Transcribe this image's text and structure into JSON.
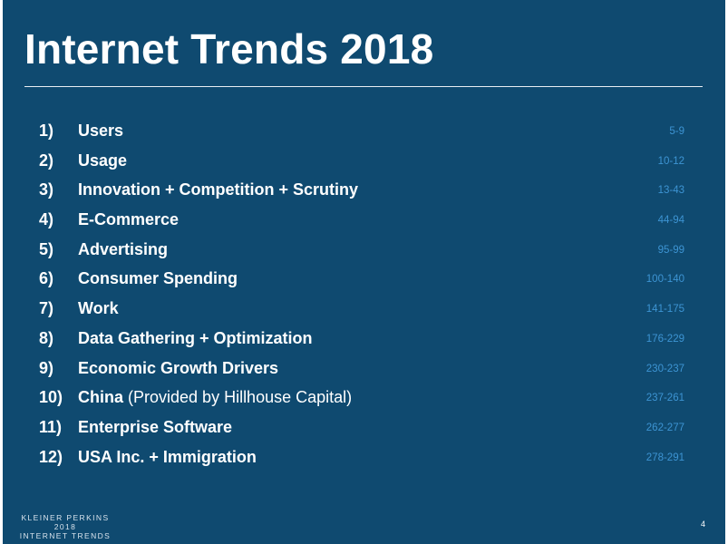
{
  "slide": {
    "title": "Internet Trends 2018",
    "colors": {
      "background": "#0f4a70",
      "text": "#ffffff",
      "page_range": "#3d94d3"
    }
  },
  "toc": [
    {
      "num": "1)",
      "label": "Users",
      "note": "",
      "pages": "5-9"
    },
    {
      "num": "2)",
      "label": "Usage",
      "note": "",
      "pages": "10-12"
    },
    {
      "num": "3)",
      "label": "Innovation + Competition + Scrutiny",
      "note": "",
      "pages": "13-43"
    },
    {
      "num": "4)",
      "label": "E-Commerce",
      "note": "",
      "pages": "44-94"
    },
    {
      "num": "5)",
      "label": "Advertising",
      "note": "",
      "pages": "95-99"
    },
    {
      "num": "6)",
      "label": "Consumer Spending",
      "note": "",
      "pages": "100-140"
    },
    {
      "num": "7)",
      "label": "Work",
      "note": "",
      "pages": "141-175"
    },
    {
      "num": "8)",
      "label": "Data Gathering + Optimization",
      "note": "",
      "pages": "176-229"
    },
    {
      "num": "9)",
      "label": "Economic Growth Drivers",
      "note": "",
      "pages": "230-237"
    },
    {
      "num": "10)",
      "label": "China",
      "note": " (Provided by Hillhouse Capital)",
      "pages": "237-261"
    },
    {
      "num": "11)",
      "label": "Enterprise Software",
      "note": "",
      "pages": "262-277"
    },
    {
      "num": "12)",
      "label": "USA Inc. +  Immigration",
      "note": "",
      "pages": "278-291"
    }
  ],
  "footer": {
    "brand_line1": "KLEINER PERKINS",
    "brand_line2": "2018",
    "brand_line3": "INTERNET TRENDS",
    "page_number": "4"
  }
}
